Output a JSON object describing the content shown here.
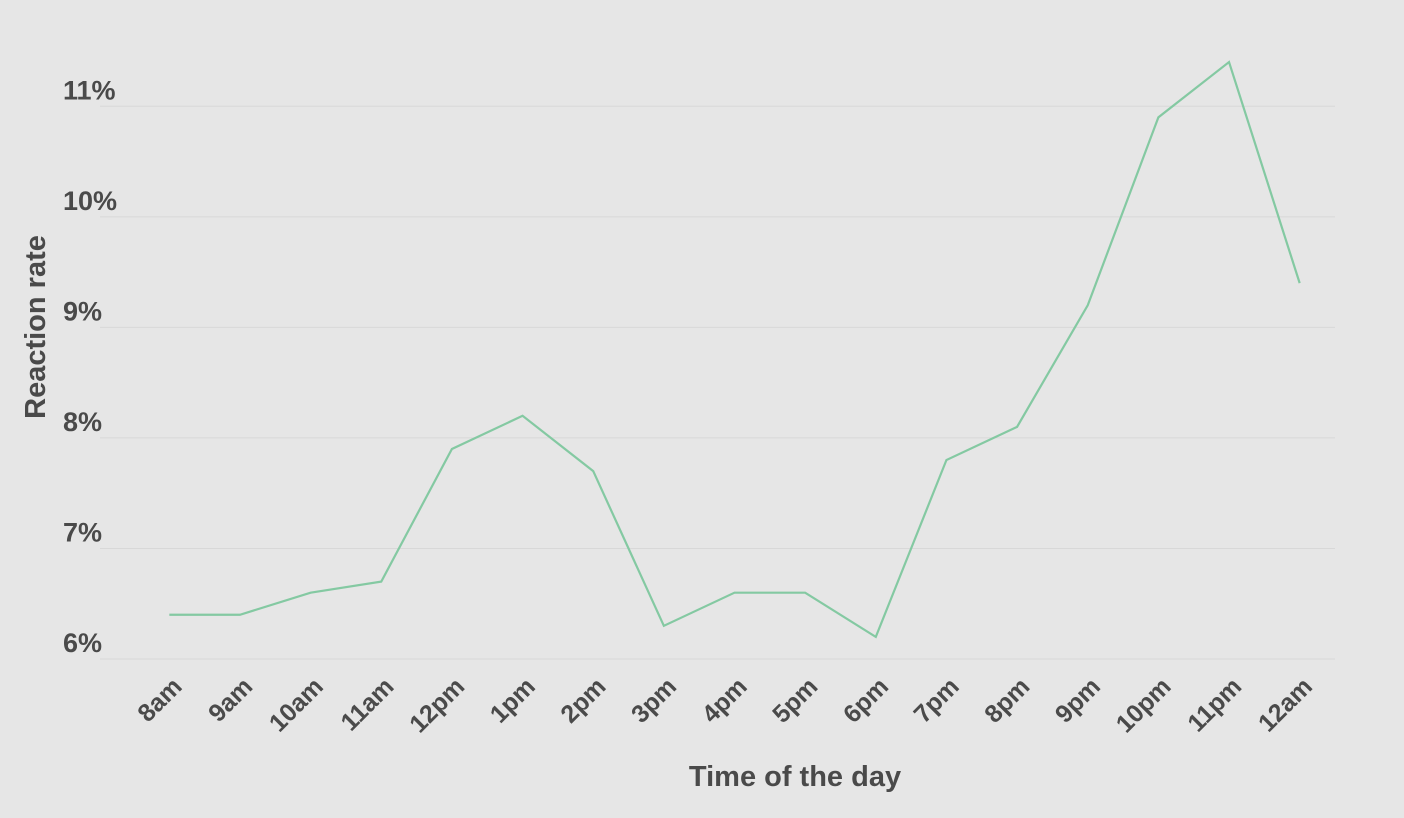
{
  "chart_data": {
    "type": "line",
    "x_label": "Time of the day",
    "y_label": "Reaction rate",
    "categories": [
      "8am",
      "9am",
      "10am",
      "11am",
      "12pm",
      "1pm",
      "2pm",
      "3pm",
      "4pm",
      "5pm",
      "6pm",
      "7pm",
      "8pm",
      "9pm",
      "10pm",
      "11pm",
      "12am"
    ],
    "series": [
      {
        "name": "Reaction rate",
        "color": "#84c9a2",
        "values": [
          6.4,
          6.4,
          6.6,
          6.7,
          7.9,
          8.2,
          7.7,
          6.3,
          6.6,
          6.6,
          6.2,
          7.8,
          8.1,
          9.2,
          10.9,
          11.4,
          9.4
        ]
      }
    ],
    "ylim": [
      6,
      11.5
    ],
    "yticks": [
      {
        "value": 6,
        "label": "6%"
      },
      {
        "value": 7,
        "label": "7%"
      },
      {
        "value": 8,
        "label": "8%"
      },
      {
        "value": 9,
        "label": "9%"
      },
      {
        "value": 10,
        "label": "10%"
      },
      {
        "value": 11,
        "label": "11%"
      }
    ],
    "grid": true
  }
}
